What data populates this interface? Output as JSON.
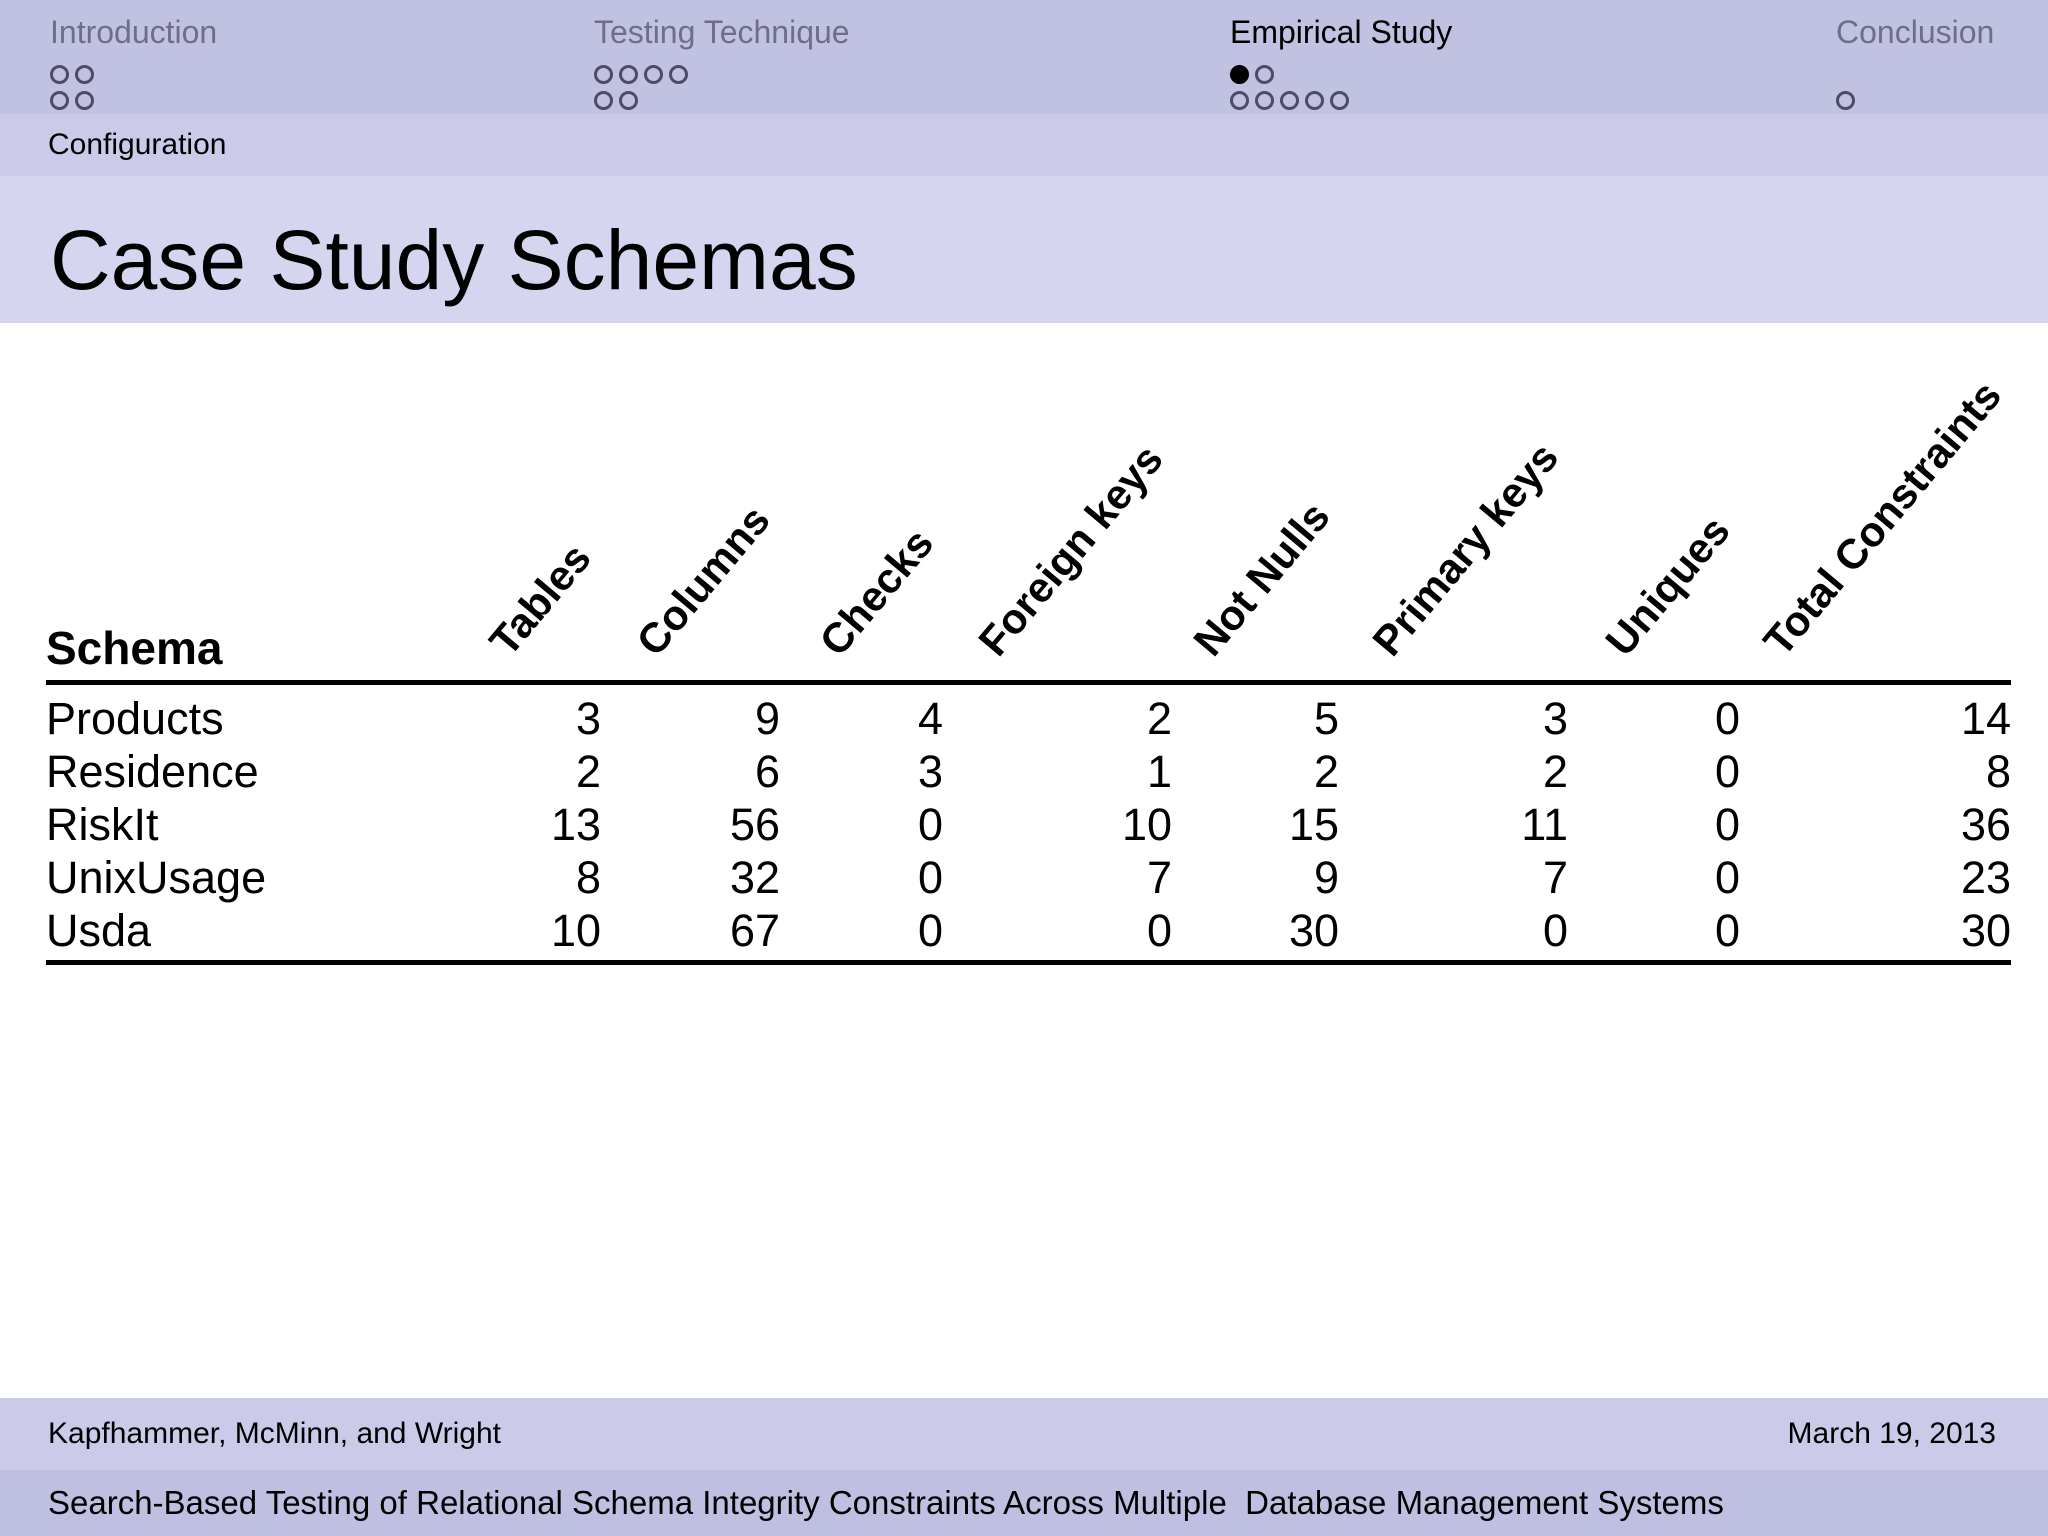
{
  "nav": {
    "sections": [
      {
        "label": "Introduction",
        "active": false,
        "dot_rows": [
          [
            0,
            0
          ],
          [
            0,
            0
          ]
        ]
      },
      {
        "label": "Testing Technique",
        "active": false,
        "dot_rows": [
          [
            0,
            0,
            0,
            0
          ],
          [
            0,
            0
          ]
        ]
      },
      {
        "label": "Empirical Study",
        "active": true,
        "dot_rows": [
          [
            1,
            0
          ],
          [
            0,
            0,
            0,
            0,
            0
          ]
        ]
      },
      {
        "label": "Conclusion",
        "active": false,
        "dot_rows": [
          [],
          [
            0
          ]
        ]
      }
    ]
  },
  "subsection": {
    "label": "Configuration"
  },
  "slide": {
    "title": "Case Study Schemas"
  },
  "chart_data": {
    "type": "table",
    "title": "Case Study Schemas",
    "row_header": "Schema",
    "columns": [
      "Tables",
      "Columns",
      "Checks",
      "Foreign keys",
      "Not Nulls",
      "Primary keys",
      "Uniques",
      "Total Constraints"
    ],
    "rows": [
      {
        "schema": "Products",
        "values": [
          3,
          9,
          4,
          2,
          5,
          3,
          0,
          14
        ]
      },
      {
        "schema": "Residence",
        "values": [
          2,
          6,
          3,
          1,
          2,
          2,
          0,
          8
        ]
      },
      {
        "schema": "RiskIt",
        "values": [
          13,
          56,
          0,
          10,
          15,
          11,
          0,
          36
        ]
      },
      {
        "schema": "UnixUsage",
        "values": [
          8,
          32,
          0,
          7,
          9,
          7,
          0,
          23
        ]
      },
      {
        "schema": "Usda",
        "values": [
          10,
          67,
          0,
          0,
          30,
          0,
          0,
          30
        ]
      }
    ]
  },
  "table": {
    "row_header": "Schema",
    "columns": [
      "Tables",
      "Columns",
      "Checks",
      "Foreign keys",
      "Not Nulls",
      "Primary keys",
      "Uniques",
      "Total Constraints"
    ],
    "rows": [
      {
        "schema": "Products",
        "values": [
          3,
          9,
          4,
          2,
          5,
          3,
          0,
          14
        ]
      },
      {
        "schema": "Residence",
        "values": [
          2,
          6,
          3,
          1,
          2,
          2,
          0,
          8
        ]
      },
      {
        "schema": "RiskIt",
        "values": [
          13,
          56,
          0,
          10,
          15,
          11,
          0,
          36
        ]
      },
      {
        "schema": "UnixUsage",
        "values": [
          8,
          32,
          0,
          7,
          9,
          7,
          0,
          23
        ]
      },
      {
        "schema": "Usda",
        "values": [
          10,
          67,
          0,
          0,
          30,
          0,
          0,
          30
        ]
      }
    ]
  },
  "footer": {
    "authors": "Kapfhammer, McMinn, and Wright",
    "date": "March 19, 2013",
    "talk_title": "Search-Based Testing of Relational Schema Integrity Constraints Across Multiple  Database Management Systems"
  },
  "colors": {
    "nav_bar": "#c1c1e1",
    "subsection_bar": "#cbcbe9",
    "title_band": "#d5d5ef",
    "author_bar": "#cbcbe9",
    "talk_bar": "#bfbfe1",
    "inactive_section_text": "#6e6e8c",
    "active_section_text": "#000000",
    "dot_outline": "#4c4c66",
    "body_background": "#ffffff"
  }
}
